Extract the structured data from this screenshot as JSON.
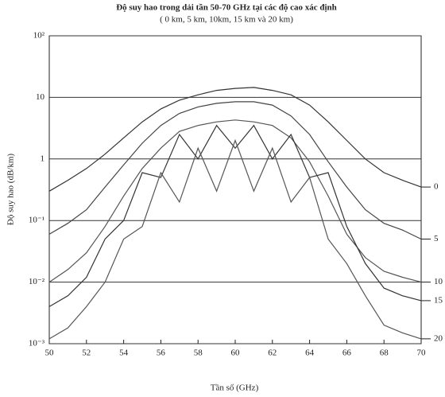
{
  "chart_data": {
    "type": "line",
    "title": "Độ suy hao trong dải tần 50-70 GHz tại các độ cao xác định",
    "subtitle": "( 0 km, 5 km, 10km, 15 km và 20 km)",
    "xlabel": "Tần số (GHz)",
    "ylabel": "Độ suy hao (dB/km)",
    "log_y": true,
    "grid": true,
    "x": [
      50,
      51,
      52,
      53,
      54,
      55,
      56,
      57,
      58,
      59,
      60,
      61,
      62,
      63,
      64,
      65,
      66,
      67,
      68,
      69,
      70
    ],
    "xlim": [
      50,
      70
    ],
    "xticks": [
      50,
      52,
      54,
      56,
      58,
      60,
      62,
      64,
      66,
      68,
      70
    ],
    "ylim": [
      0.001,
      100
    ],
    "yticks": [
      {
        "value": 0.001,
        "label": "10⁻³"
      },
      {
        "value": 0.01,
        "label": "10⁻²"
      },
      {
        "value": 0.1,
        "label": "10⁻¹"
      },
      1,
      10,
      {
        "value": 100,
        "label": "10²"
      }
    ],
    "series": [
      {
        "name": "0",
        "color": "#333333",
        "values": [
          0.3,
          0.45,
          0.7,
          1.2,
          2.2,
          4,
          6.5,
          9,
          11,
          13,
          14,
          14.5,
          13,
          11,
          7.5,
          4,
          2,
          1,
          0.6,
          0.45,
          0.35
        ]
      },
      {
        "name": "5",
        "color": "#444444",
        "values": [
          0.06,
          0.09,
          0.15,
          0.35,
          0.8,
          1.8,
          3.5,
          5.5,
          7,
          8,
          8.5,
          8.5,
          7.5,
          5,
          2.5,
          0.9,
          0.35,
          0.15,
          0.09,
          0.07,
          0.05
        ]
      },
      {
        "name": "10",
        "color": "#555555",
        "values": [
          0.01,
          0.016,
          0.03,
          0.08,
          0.25,
          0.7,
          1.5,
          2.8,
          3.5,
          4,
          4.3,
          4,
          3.5,
          2.2,
          0.9,
          0.25,
          0.06,
          0.025,
          0.015,
          0.012,
          0.01
        ]
      },
      {
        "name": "15",
        "color": "#333333",
        "values": [
          0.004,
          0.006,
          0.012,
          0.05,
          0.1,
          0.6,
          0.5,
          2.5,
          1,
          3.5,
          1.5,
          3.5,
          1,
          2.5,
          0.5,
          0.6,
          0.08,
          0.02,
          0.008,
          0.006,
          0.005
        ]
      },
      {
        "name": "20",
        "color": "#555555",
        "values": [
          0.0012,
          0.0018,
          0.004,
          0.01,
          0.05,
          0.08,
          0.6,
          0.2,
          1.5,
          0.3,
          2,
          0.3,
          1.5,
          0.2,
          0.5,
          0.05,
          0.02,
          0.006,
          0.002,
          0.0015,
          0.0012
        ]
      }
    ]
  }
}
